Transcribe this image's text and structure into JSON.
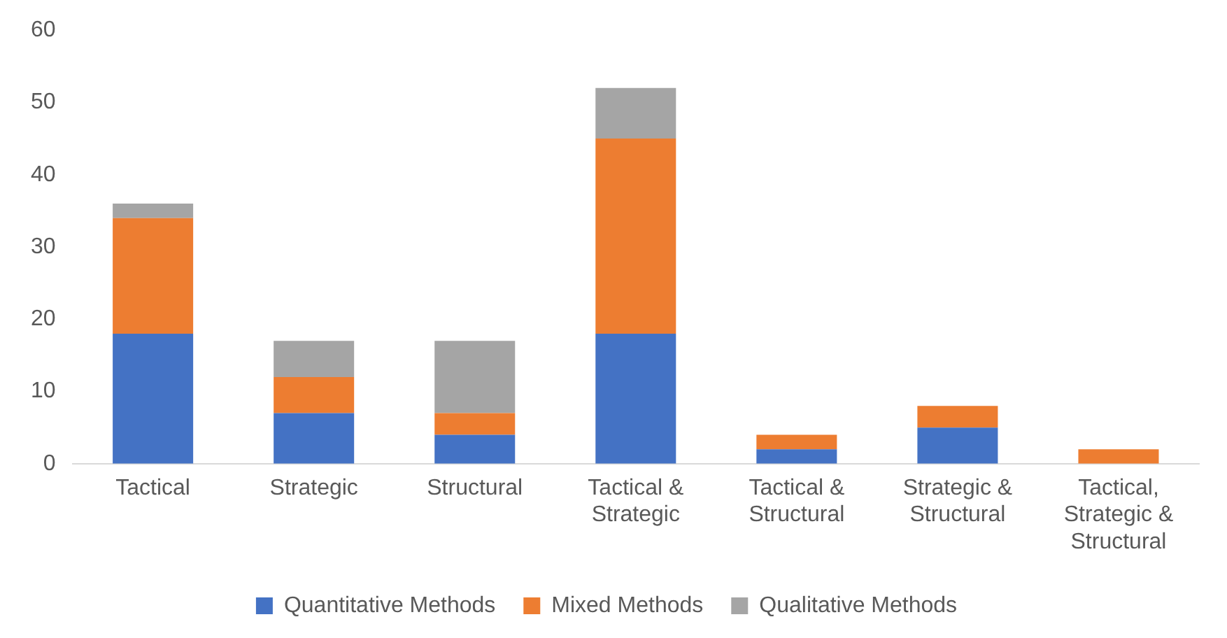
{
  "chart_data": {
    "type": "bar",
    "stacked": true,
    "categories": [
      "Tactical",
      "Strategic",
      "Structural",
      "Tactical & Strategic",
      "Tactical & Structural",
      "Strategic & Structural",
      "Tactical, Strategic & Structural"
    ],
    "series": [
      {
        "name": "Quantitative Methods",
        "color": "#4472c4",
        "values": [
          18,
          7,
          4,
          18,
          2,
          5,
          0
        ]
      },
      {
        "name": "Mixed Methods",
        "color": "#ed7d31",
        "values": [
          16,
          5,
          3,
          27,
          2,
          3,
          2
        ]
      },
      {
        "name": "Qualitative Methods",
        "color": "#a5a5a5",
        "values": [
          2,
          5,
          10,
          7,
          0,
          0,
          0
        ]
      }
    ],
    "ylim": [
      0,
      60
    ],
    "yticks": [
      0,
      10,
      20,
      30,
      40,
      50,
      60
    ],
    "grid": false,
    "legend": "bottom"
  }
}
